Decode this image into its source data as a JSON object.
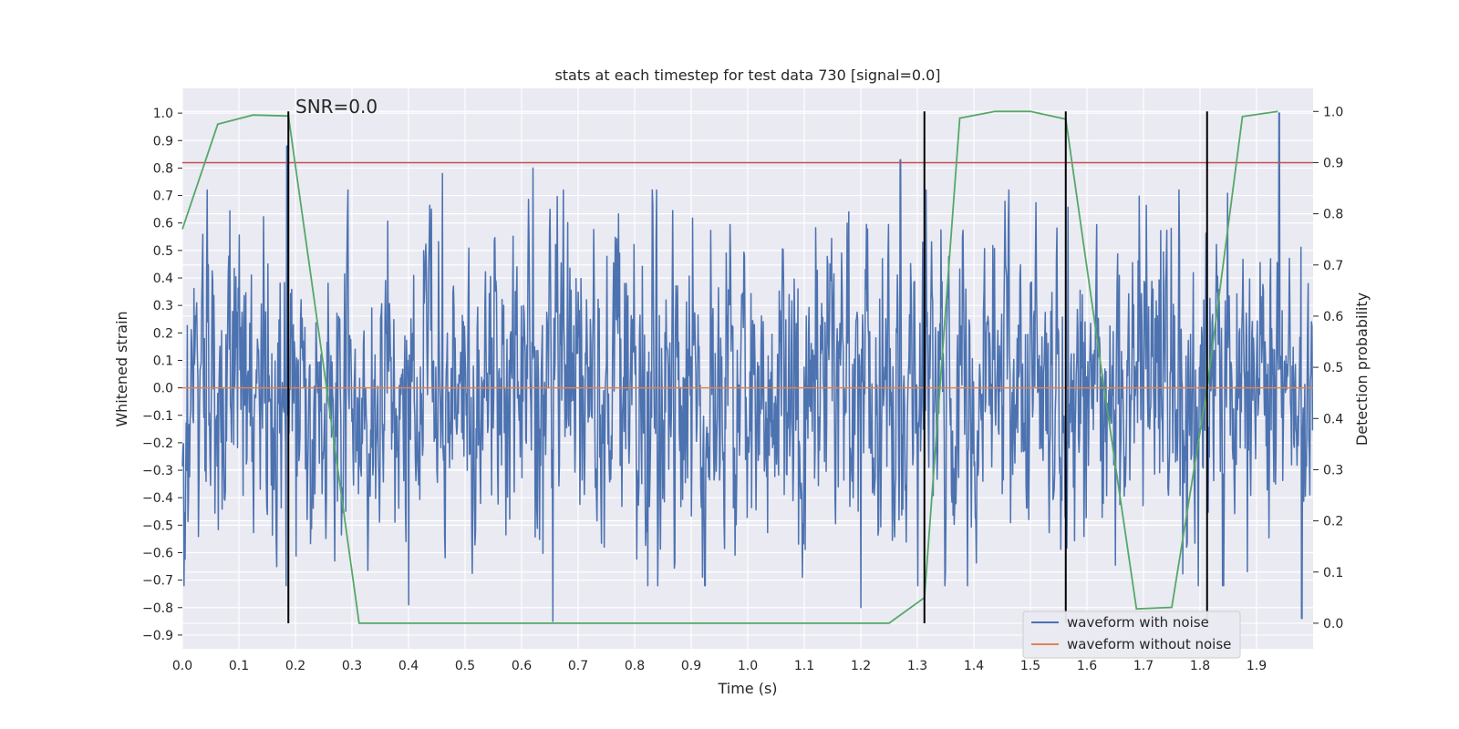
{
  "chart_data": {
    "type": "line",
    "title": "stats at each timestep for test data 730 [signal=0.0]",
    "xlabel": "Time (s)",
    "ylabel": "Whitened strain",
    "y2label": "Detection probability",
    "annotation": "SNR=0.0",
    "xlim": [
      0.0,
      2.0
    ],
    "ylim": [
      -0.95,
      1.09
    ],
    "y2lim": [
      -0.05,
      1.045
    ],
    "x_ticks": [
      0.0,
      0.1,
      0.2,
      0.3,
      0.4,
      0.5,
      0.6,
      0.7,
      0.8,
      0.9,
      1.0,
      1.1,
      1.2,
      1.3,
      1.4,
      1.5,
      1.6,
      1.7,
      1.8,
      1.9
    ],
    "x_tick_labels": [
      "0.0",
      "0.1",
      "0.2",
      "0.3",
      "0.4",
      "0.5",
      "0.6",
      "0.7",
      "0.8",
      "0.9",
      "1.0",
      "1.1",
      "1.2",
      "1.3",
      "1.4",
      "1.5",
      "1.6",
      "1.7",
      "1.8",
      "1.9"
    ],
    "y_ticks": [
      1.0,
      0.9,
      0.8,
      0.7,
      0.6,
      0.5,
      0.4,
      0.3,
      0.2,
      0.1,
      0.0,
      -0.1,
      -0.2,
      -0.3,
      -0.4,
      -0.5,
      -0.6,
      -0.7,
      -0.8,
      -0.9
    ],
    "y_tick_labels": [
      "1.0",
      "0.9",
      "0.8",
      "0.7",
      "0.6",
      "0.5",
      "0.4",
      "0.3",
      "0.2",
      "0.1",
      "0.0",
      "−0.1",
      "−0.2",
      "−0.3",
      "−0.4",
      "−0.5",
      "−0.6",
      "−0.7",
      "−0.8",
      "−0.9"
    ],
    "y2_ticks": [
      1.0,
      0.9,
      0.8,
      0.7,
      0.6,
      0.5,
      0.4,
      0.3,
      0.2,
      0.1,
      0.0
    ],
    "y2_tick_labels": [
      "1.0",
      "0.9",
      "0.8",
      "0.7",
      "0.6",
      "0.5",
      "0.4",
      "0.3",
      "0.2",
      "0.1",
      "0.0"
    ],
    "legend": {
      "position": "bottom-right",
      "entries": [
        {
          "label": "waveform with noise",
          "color": "#4c72b0"
        },
        {
          "label": "waveform without noise",
          "color": "#dd8452"
        }
      ]
    },
    "series": [
      {
        "name": "waveform with noise",
        "axis": "left",
        "color": "#4c72b0",
        "style": "dense noisy trace",
        "sample_count": 2048,
        "seed": 730,
        "amplitude_sigma": 0.25,
        "peaks": [
          {
            "x": 0.185,
            "y": 0.88
          },
          {
            "x": 0.62,
            "y": 0.8
          },
          {
            "x": 0.46,
            "y": 0.78
          },
          {
            "x": 1.27,
            "y": 0.83
          },
          {
            "x": 1.94,
            "y": 1.0
          },
          {
            "x": 0.655,
            "y": -0.85
          },
          {
            "x": 1.98,
            "y": -0.84
          },
          {
            "x": 0.4,
            "y": -0.79
          },
          {
            "x": 1.2,
            "y": -0.8
          }
        ]
      },
      {
        "name": "waveform without noise",
        "axis": "left",
        "color": "#dd8452",
        "x": [
          0.0,
          2.0
        ],
        "y": [
          0.0,
          0.0
        ]
      },
      {
        "name": "detection probability",
        "axis": "right",
        "color": "#55a868",
        "x": [
          0.0,
          0.0625,
          0.125,
          0.1875,
          0.25,
          0.3125,
          0.375,
          0.4375,
          0.5,
          0.5625,
          0.625,
          0.6875,
          0.75,
          0.8125,
          0.875,
          0.9375,
          1.0,
          1.0625,
          1.125,
          1.1875,
          1.25,
          1.3125,
          1.375,
          1.4375,
          1.5,
          1.5625,
          1.625,
          1.6875,
          1.75,
          1.8125,
          1.875,
          1.9375
        ],
        "y": [
          0.77,
          0.975,
          0.993,
          0.991,
          0.5,
          0.0,
          0.0,
          0.0,
          0.0,
          0.0,
          0.0,
          0.0,
          0.0,
          0.0,
          0.0,
          0.0,
          0.0,
          0.0,
          0.0,
          0.0,
          0.0,
          0.05,
          0.987,
          1.0,
          1.0,
          0.985,
          0.5,
          0.028,
          0.031,
          0.46,
          0.99,
          1.0
        ]
      }
    ],
    "threshold": {
      "axis": "right",
      "value": 0.9,
      "color": "#c44e52"
    },
    "vertical_markers": {
      "color": "#000000",
      "x": [
        0.1875,
        1.3125,
        1.5625,
        1.8125
      ],
      "y_range": [
        0.0,
        1.0
      ]
    }
  }
}
